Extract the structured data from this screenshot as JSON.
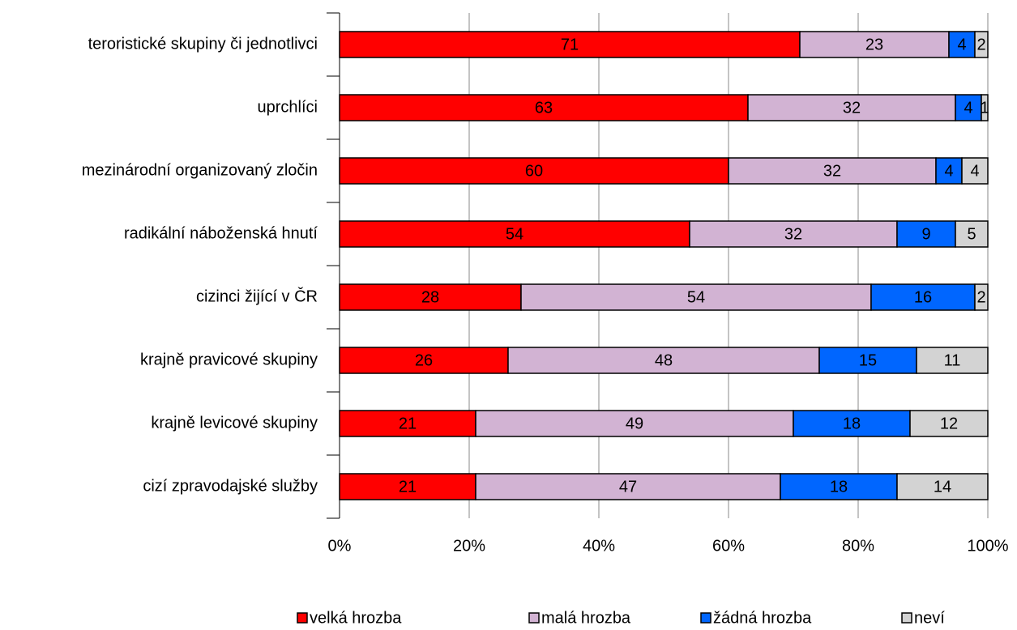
{
  "chart_data": {
    "type": "stacked-bar-horizontal",
    "categories": [
      "teroristické skupiny či jednotlivci",
      "uprchlíci",
      "mezinárodní organizovaný zločin",
      "radikální náboženská hnutí",
      "cizinci žijící v ČR",
      "krajně pravicové skupiny",
      "krajně levicové skupiny",
      "cizí zpravodajské služby"
    ],
    "series": [
      {
        "name": "velká hrozba",
        "color": "#ff0000",
        "values": [
          71,
          63,
          60,
          54,
          28,
          26,
          21,
          21
        ]
      },
      {
        "name": "malá hrozba",
        "color": "#d2b3d3",
        "values": [
          23,
          32,
          32,
          32,
          54,
          48,
          49,
          47
        ]
      },
      {
        "name": "žádná hrozba",
        "color": "#0066ff",
        "values": [
          4,
          4,
          4,
          9,
          16,
          15,
          18,
          18
        ]
      },
      {
        "name": "neví",
        "color": "#d3d3d3",
        "values": [
          2,
          1,
          4,
          5,
          2,
          11,
          12,
          14
        ]
      }
    ],
    "xlim": [
      0,
      100
    ],
    "xticks": [
      {
        "value": 0,
        "label": "0%"
      },
      {
        "value": 20,
        "label": "20%"
      },
      {
        "value": 40,
        "label": "40%"
      },
      {
        "value": 60,
        "label": "60%"
      },
      {
        "value": 80,
        "label": "80%"
      },
      {
        "value": 100,
        "label": "100%"
      }
    ],
    "grid": true,
    "legend": "bottom"
  }
}
